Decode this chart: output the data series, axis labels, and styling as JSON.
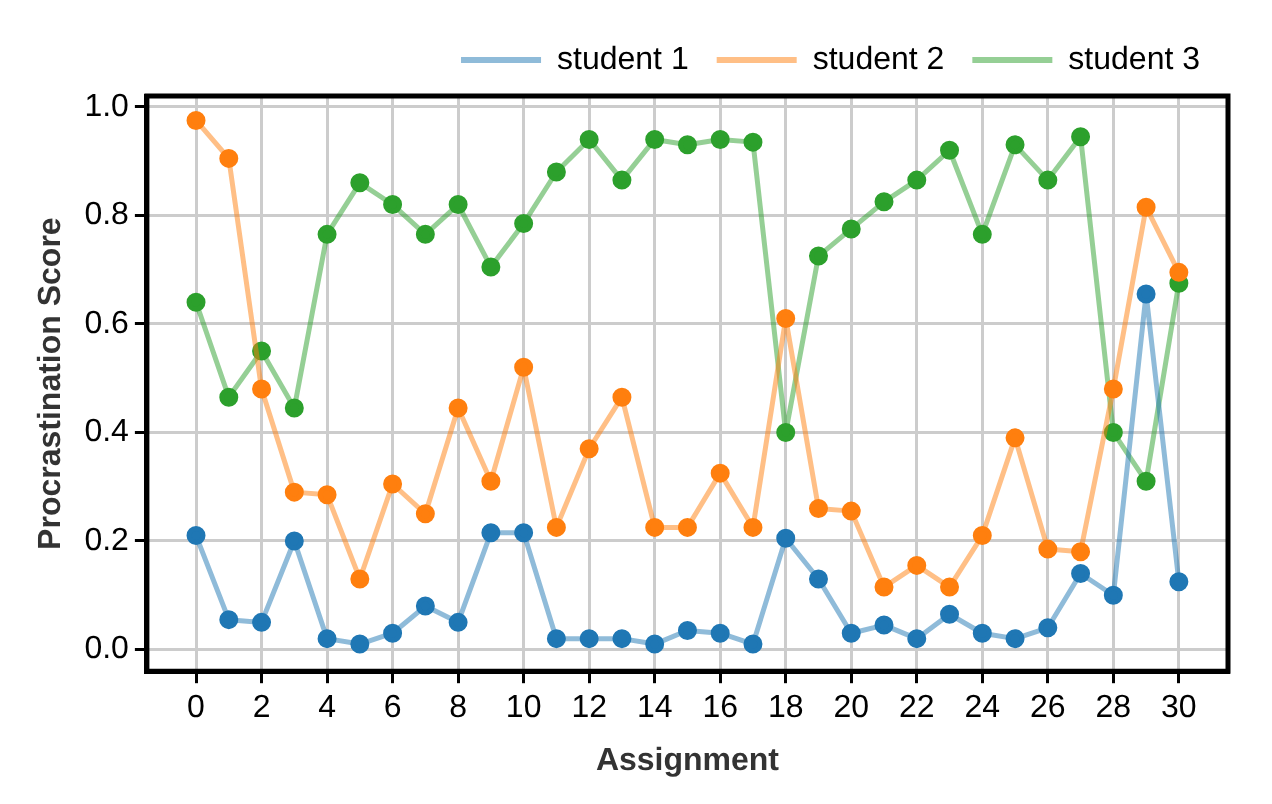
{
  "chart_data": {
    "type": "line",
    "xlabel": "Assignment",
    "ylabel": "Procrastination Score",
    "x": [
      0,
      1,
      2,
      3,
      4,
      5,
      6,
      7,
      8,
      9,
      10,
      11,
      12,
      13,
      14,
      15,
      16,
      17,
      18,
      19,
      20,
      21,
      22,
      23,
      24,
      25,
      26,
      27,
      28,
      29,
      30
    ],
    "series": [
      {
        "name": "student 1",
        "color": "#1f77b4",
        "values": [
          0.21,
          0.055,
          0.05,
          0.2,
          0.02,
          0.01,
          0.03,
          0.08,
          0.05,
          0.215,
          0.215,
          0.02,
          0.02,
          0.02,
          0.01,
          0.035,
          0.03,
          0.01,
          0.205,
          0.13,
          0.03,
          0.045,
          0.02,
          0.065,
          0.03,
          0.02,
          0.04,
          0.14,
          0.1,
          0.655,
          0.125
        ]
      },
      {
        "name": "student 2",
        "color": "#ff7f0e",
        "values": [
          0.975,
          0.905,
          0.48,
          0.29,
          0.285,
          0.13,
          0.305,
          0.25,
          0.445,
          0.31,
          0.52,
          0.225,
          0.37,
          0.465,
          0.225,
          0.225,
          0.325,
          0.225,
          0.61,
          0.26,
          0.255,
          0.115,
          0.155,
          0.115,
          0.21,
          0.39,
          0.185,
          0.18,
          0.48,
          0.815,
          0.695
        ]
      },
      {
        "name": "student 3",
        "color": "#2ca02c",
        "values": [
          0.64,
          0.465,
          0.55,
          0.445,
          0.765,
          0.86,
          0.82,
          0.765,
          0.82,
          0.705,
          0.785,
          0.88,
          0.94,
          0.865,
          0.94,
          0.93,
          0.94,
          0.935,
          0.4,
          0.725,
          0.775,
          0.825,
          0.865,
          0.92,
          0.765,
          0.93,
          0.865,
          0.945,
          0.4,
          0.31,
          0.675
        ]
      }
    ],
    "xlim": [
      -1.5,
      31.5
    ],
    "xticks": [
      0,
      2,
      4,
      6,
      8,
      10,
      12,
      14,
      16,
      18,
      20,
      22,
      24,
      26,
      28,
      30
    ],
    "ylim": [
      -0.04,
      1.02
    ],
    "yticks": [
      {
        "value": 0,
        "label": "0.0"
      },
      {
        "value": 0.2,
        "label": "0.2"
      },
      {
        "value": 0.4,
        "label": "0.4"
      },
      {
        "value": 0.6,
        "label": "0.6"
      },
      {
        "value": 0.8,
        "label": "0.8"
      },
      {
        "value": 1,
        "label": "1.0"
      }
    ],
    "grid": true,
    "legend": "top",
    "marker": "circle",
    "line_style": "solid"
  }
}
